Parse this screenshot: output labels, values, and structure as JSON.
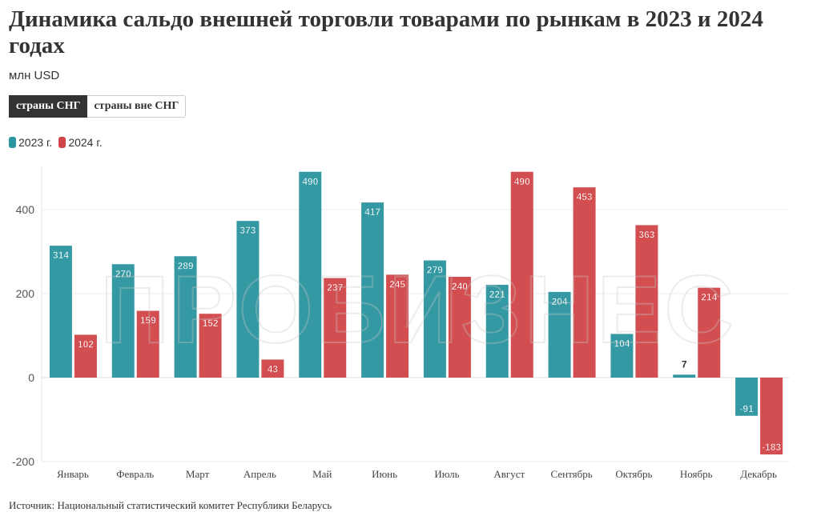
{
  "title": "Динамика сальдо внешней торговли товарами по рынкам в 2023 и 2024 годах",
  "subtitle": "млн USD",
  "toggle": {
    "active": "страны СНГ",
    "inactive": "страны вне СНГ"
  },
  "watermark": "ПРОБИЗНЕС",
  "source": "Источник: Национальный статистический комитет Республики Беларусь",
  "chart_data": {
    "type": "bar",
    "categories": [
      "Январь",
      "Февраль",
      "Март",
      "Апрель",
      "Май",
      "Июнь",
      "Июль",
      "Август",
      "Сентябрь",
      "Октябрь",
      "Ноябрь",
      "Декабрь"
    ],
    "series": [
      {
        "name": "2023 г.",
        "color": "#2a949f",
        "values": [
          314,
          270,
          289,
          373,
          490,
          417,
          279,
          221,
          204,
          104,
          7,
          -91
        ]
      },
      {
        "name": "2024 г.",
        "color": "#d04447",
        "values": [
          102,
          159,
          152,
          43,
          237,
          245,
          240,
          490,
          453,
          363,
          214,
          -183
        ]
      }
    ],
    "yticks": [
      -200,
      0,
      200,
      400
    ],
    "ylim": [
      -200,
      500
    ],
    "legend": "top-left",
    "grid": true
  }
}
